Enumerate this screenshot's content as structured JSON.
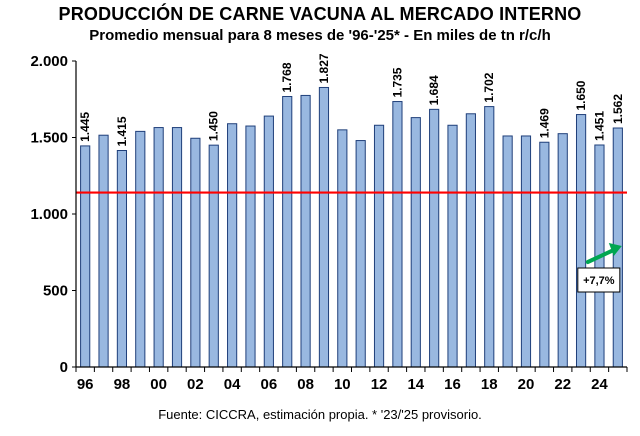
{
  "chart_data": {
    "type": "bar",
    "title": "PRODUCCIÓN DE CARNE VACUNA AL MERCADO INTERNO",
    "subtitle": "Promedio mensual para 8 meses de '96-'25* - En miles de tn r/c/h",
    "source": "Fuente: CICCRA, estimación propia. * '23/'25 provisorio.",
    "years": [
      1996,
      1997,
      1998,
      1999,
      2000,
      2001,
      2002,
      2003,
      2004,
      2005,
      2006,
      2007,
      2008,
      2009,
      2010,
      2011,
      2012,
      2013,
      2014,
      2015,
      2016,
      2017,
      2018,
      2019,
      2020,
      2021,
      2022,
      2023,
      2024,
      2025
    ],
    "x_tick_labels": [
      "96",
      "98",
      "00",
      "02",
      "04",
      "06",
      "08",
      "10",
      "12",
      "14",
      "16",
      "18",
      "20",
      "22",
      "24"
    ],
    "values": [
      1445,
      1515,
      1415,
      1540,
      1565,
      1565,
      1495,
      1450,
      1590,
      1575,
      1640,
      1768,
      1775,
      1827,
      1550,
      1480,
      1580,
      1735,
      1630,
      1684,
      1580,
      1655,
      1702,
      1510,
      1510,
      1469,
      1525,
      1650,
      1451,
      1562
    ],
    "data_labels": [
      {
        "year": 1996,
        "text": "1.445"
      },
      {
        "year": 1998,
        "text": "1.415"
      },
      {
        "year": 2003,
        "text": "1.450"
      },
      {
        "year": 2007,
        "text": "1.768"
      },
      {
        "year": 2009,
        "text": "1.827"
      },
      {
        "year": 2013,
        "text": "1.735"
      },
      {
        "year": 2015,
        "text": "1.684"
      },
      {
        "year": 2018,
        "text": "1.702"
      },
      {
        "year": 2021,
        "text": "1.469"
      },
      {
        "year": 2023,
        "text": "1.650"
      },
      {
        "year": 2024,
        "text": "1.451"
      },
      {
        "year": 2025,
        "text": "1.562"
      }
    ],
    "y_ticks": [
      0,
      500,
      1000,
      1500,
      2000
    ],
    "y_tick_labels": [
      "0",
      "500",
      "1.000",
      "1.500",
      "2.000"
    ],
    "ylim": [
      0,
      2000
    ],
    "reference_line": {
      "value": 1140,
      "color": "#ff0000"
    },
    "annotation": {
      "text": "+7,7%",
      "year": 2025,
      "arrow_color": "#00a651"
    },
    "bar_color": "#99b8e0",
    "bar_edge_color": "#1f3f7a",
    "grid": false
  }
}
